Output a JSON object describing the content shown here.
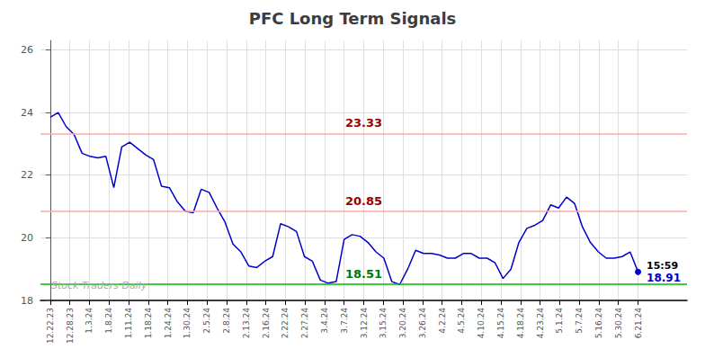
{
  "chart_data": {
    "type": "line",
    "title": "PFC Long Term Signals",
    "color": "#0000cc",
    "x": [
      0,
      0.405405,
      0.810811,
      1.216216,
      1.621622,
      2.027027,
      2.432432,
      2.837838,
      3.243243,
      3.648649,
      4.054054,
      4.459459,
      4.864865,
      5.27027,
      5.675676,
      6.081081,
      6.486486,
      6.891892,
      7.297297,
      7.702703,
      8.108108,
      8.513514,
      8.918919,
      9.324324,
      9.72973,
      10.135135,
      10.540541,
      10.945946,
      11.351351,
      11.756757,
      12.162162,
      12.567568,
      12.972973,
      13.378378,
      13.783784,
      14.189189,
      14.594595,
      15,
      15.405405,
      15.810811,
      16.216216,
      16.621622,
      17.027027,
      17.432432,
      17.837838,
      18.243243,
      18.648649,
      19.054054,
      19.459459,
      19.864865,
      20.27027,
      20.675676,
      21.081081,
      21.486486,
      21.891892,
      22.297297,
      22.702703,
      23.108108,
      23.513514,
      23.918919,
      24.324324,
      24.72973,
      25.135135,
      25.540541,
      25.945946,
      26.351351,
      26.756757,
      27.162162,
      27.567568,
      27.972973,
      28.378378,
      28.783784,
      29.189189,
      29.594595,
      30
    ],
    "values": [
      23.85,
      24.0,
      23.55,
      23.3,
      22.7,
      22.6,
      22.55,
      22.6,
      21.6,
      22.9,
      23.05,
      22.85,
      22.65,
      22.5,
      21.65,
      21.6,
      21.15,
      20.85,
      20.8,
      21.55,
      21.45,
      20.95,
      20.5,
      19.8,
      19.55,
      19.1,
      19.05,
      19.25,
      19.4,
      20.45,
      20.35,
      20.2,
      19.4,
      19.25,
      18.65,
      18.55,
      18.6,
      19.95,
      20.1,
      20.05,
      19.85,
      19.55,
      19.35,
      18.6,
      18.51,
      19.0,
      19.6,
      19.5,
      19.5,
      19.45,
      19.35,
      19.35,
      19.5,
      19.5,
      19.35,
      19.35,
      19.2,
      18.7,
      19.0,
      19.85,
      20.3,
      20.4,
      20.55,
      21.05,
      20.95,
      21.3,
      21.1,
      20.35,
      19.85,
      19.55,
      19.35,
      19.35,
      19.4,
      19.55,
      18.91
    ],
    "xlim": [
      -0.5,
      32.5
    ],
    "xticks": [
      {
        "value": 0,
        "label": "12.22.23"
      },
      {
        "value": 1,
        "label": "12.28.23"
      },
      {
        "value": 2,
        "label": "1.3.24"
      },
      {
        "value": 3,
        "label": "1.8.24"
      },
      {
        "value": 4,
        "label": "1.11.24"
      },
      {
        "value": 5,
        "label": "1.18.24"
      },
      {
        "value": 6,
        "label": "1.24.24"
      },
      {
        "value": 7,
        "label": "1.30.24"
      },
      {
        "value": 8,
        "label": "2.5.24"
      },
      {
        "value": 9,
        "label": "2.8.24"
      },
      {
        "value": 10,
        "label": "2.13.24"
      },
      {
        "value": 11,
        "label": "2.16.24"
      },
      {
        "value": 12,
        "label": "2.22.24"
      },
      {
        "value": 13,
        "label": "2.27.24"
      },
      {
        "value": 14,
        "label": "3.4.24"
      },
      {
        "value": 15,
        "label": "3.7.24"
      },
      {
        "value": 16,
        "label": "3.12.24"
      },
      {
        "value": 17,
        "label": "3.15.24"
      },
      {
        "value": 18,
        "label": "3.20.24"
      },
      {
        "value": 19,
        "label": "3.26.24"
      },
      {
        "value": 20,
        "label": "4.2.24"
      },
      {
        "value": 21,
        "label": "4.5.24"
      },
      {
        "value": 22,
        "label": "4.10.24"
      },
      {
        "value": 23,
        "label": "4.15.24"
      },
      {
        "value": 24,
        "label": "4.18.24"
      },
      {
        "value": 25,
        "label": "4.23.24"
      },
      {
        "value": 26,
        "label": "5.1.24"
      },
      {
        "value": 27,
        "label": "5.7.24"
      },
      {
        "value": 28,
        "label": "5.16.24"
      },
      {
        "value": 29,
        "label": "5.30.24"
      },
      {
        "value": 30,
        "label": "6.21.24"
      }
    ],
    "ylim": [
      18.0,
      26.3
    ],
    "yticks": [
      18,
      20,
      22,
      24,
      26
    ],
    "grid": true,
    "hlines": [
      {
        "y": 18.51,
        "color": "#00bb00",
        "label": "18.51",
        "label_color": "#007700"
      },
      {
        "y": 23.33,
        "color": "#ffaaaa",
        "label": "23.33",
        "label_color": "#990000"
      },
      {
        "y": 20.85,
        "color": "#ffaaaa",
        "label": "20.85",
        "label_color": "#990000"
      }
    ],
    "last_point": {
      "time": "15:59",
      "label": "18.91"
    },
    "watermark": {
      "text": "Stock Traders Daily",
      "color": "#aaaaaa"
    }
  }
}
